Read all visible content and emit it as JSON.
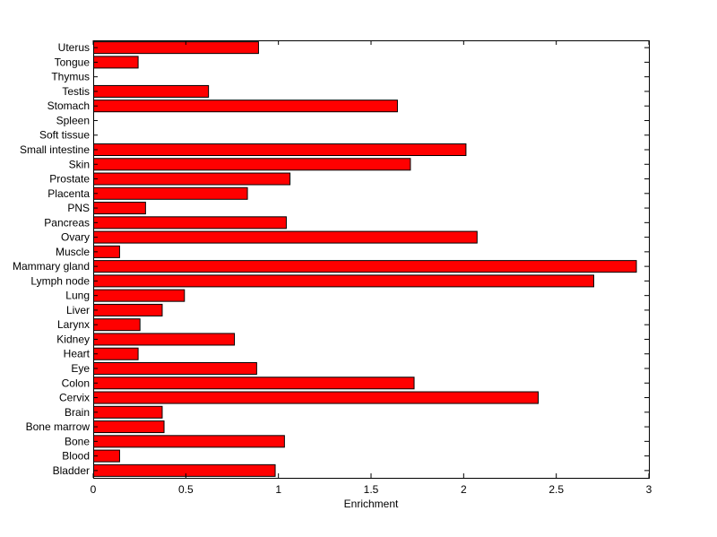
{
  "chart_data": {
    "type": "bar",
    "orientation": "horizontal",
    "title": "",
    "xlabel": "Enrichment",
    "ylabel": "",
    "xlim": [
      0,
      3
    ],
    "xticks": [
      0,
      0.5,
      1,
      1.5,
      2,
      2.5,
      3
    ],
    "xtick_labels": [
      "0",
      "0.5",
      "1",
      "1.5",
      "2",
      "2.5",
      "3"
    ],
    "grid": false,
    "legend": "none",
    "bar_color": "#ff0000",
    "bar_edge_color": "#000000",
    "categories": [
      "Bladder",
      "Blood",
      "Bone",
      "Bone marrow",
      "Brain",
      "Cervix",
      "Colon",
      "Eye",
      "Heart",
      "Kidney",
      "Larynx",
      "Liver",
      "Lung",
      "Lymph node",
      "Mammary gland",
      "Muscle",
      "Ovary",
      "Pancreas",
      "PNS",
      "Placenta",
      "Prostate",
      "Skin",
      "Small intestine",
      "Soft tissue",
      "Spleen",
      "Stomach",
      "Testis",
      "Thymus",
      "Tongue",
      "Uterus"
    ],
    "values": [
      0.98,
      0.14,
      1.03,
      0.38,
      0.37,
      2.4,
      1.73,
      0.88,
      0.24,
      0.76,
      0.25,
      0.37,
      0.49,
      2.7,
      2.93,
      0.14,
      2.07,
      1.04,
      0.28,
      0.83,
      1.06,
      1.71,
      2.01,
      0,
      0,
      1.64,
      0.62,
      0,
      0.24,
      0.89
    ]
  }
}
